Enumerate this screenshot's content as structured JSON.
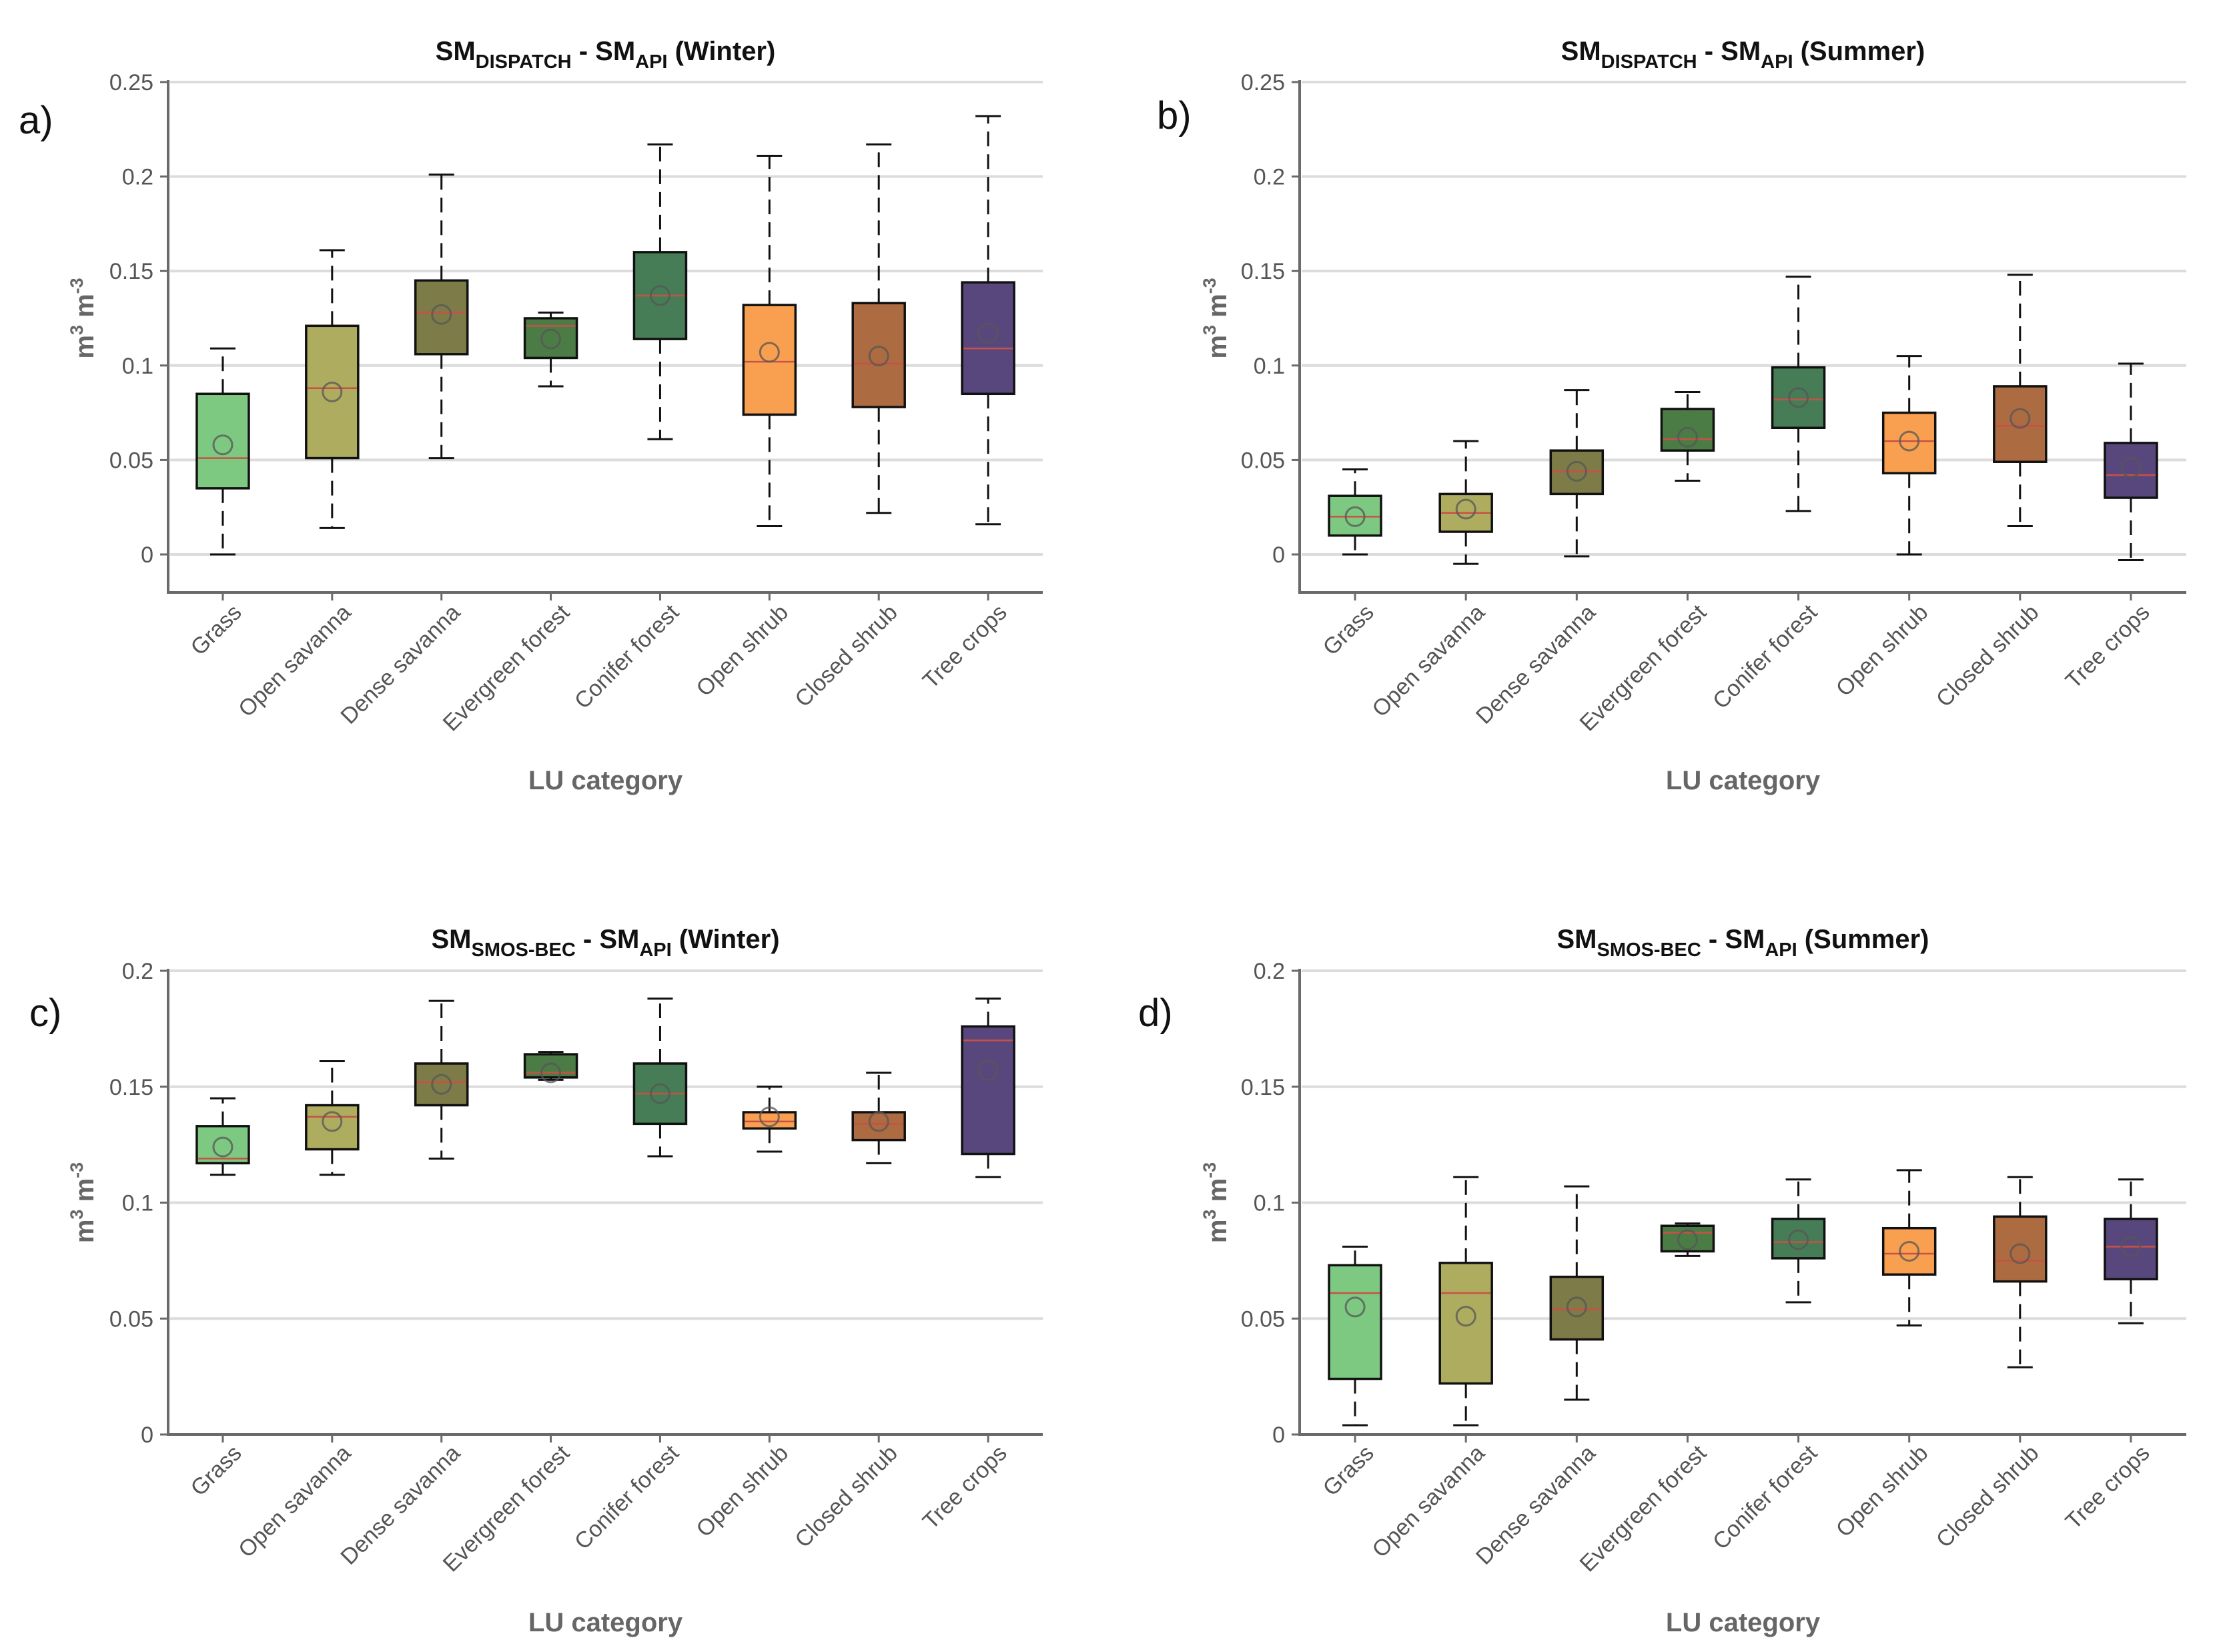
{
  "figure": {
    "colors": {
      "Grass": "#7ec982",
      "Open savanna": "#aeac5f",
      "Dense savanna": "#7d7b48",
      "Evergreen forest": "#4c7c46",
      "Conifer forest": "#477d56",
      "Open shrub": "#f8a050",
      "Closed shrub": "#ac6b40",
      "Tree crops": "#58477d",
      "median_line": "#c95046",
      "mean_marker": "#555555",
      "grid": "#dcdcdc",
      "axis": "#6a6a6a"
    }
  },
  "chart_data": [
    {
      "panel": "a)",
      "type": "box",
      "title": {
        "main1": "SM",
        "sub1": "DISPATCH",
        "mid": " - SM",
        "sub2": "API",
        "tail": " (Winter)"
      },
      "xlabel": "LU category",
      "ylabel": {
        "unit1": "m",
        "exp1": "3",
        "unit2": " m",
        "exp2": "-3"
      },
      "ylim": [
        -0.02,
        0.25
      ],
      "yticks": [
        0,
        0.05,
        0.1,
        0.15,
        0.2,
        0.25
      ],
      "ytick_labels": [
        "0",
        "0.05",
        "0.1",
        "0.15",
        "0.2",
        "0.25"
      ],
      "categories": [
        "Grass",
        "Open savanna",
        "Dense savanna",
        "Evergreen forest",
        "Conifer forest",
        "Open shrub",
        "Closed shrub",
        "Tree crops"
      ],
      "boxes": [
        {
          "whislo": 0.0,
          "q1": 0.035,
          "med": 0.051,
          "q3": 0.085,
          "whishi": 0.109,
          "mean": 0.058
        },
        {
          "whislo": 0.014,
          "q1": 0.051,
          "med": 0.088,
          "q3": 0.121,
          "whishi": 0.161,
          "mean": 0.086
        },
        {
          "whislo": 0.051,
          "q1": 0.106,
          "med": 0.128,
          "q3": 0.145,
          "whishi": 0.201,
          "mean": 0.127
        },
        {
          "whislo": 0.089,
          "q1": 0.104,
          "med": 0.121,
          "q3": 0.125,
          "whishi": 0.128,
          "mean": 0.114
        },
        {
          "whislo": 0.061,
          "q1": 0.114,
          "med": 0.137,
          "q3": 0.16,
          "whishi": 0.217,
          "mean": 0.137
        },
        {
          "whislo": 0.015,
          "q1": 0.074,
          "med": 0.102,
          "q3": 0.132,
          "whishi": 0.211,
          "mean": 0.107
        },
        {
          "whislo": 0.022,
          "q1": 0.078,
          "med": 0.101,
          "q3": 0.133,
          "whishi": 0.217,
          "mean": 0.105
        },
        {
          "whislo": 0.016,
          "q1": 0.085,
          "med": 0.109,
          "q3": 0.144,
          "whishi": 0.232,
          "mean": 0.117
        }
      ]
    },
    {
      "panel": "b)",
      "type": "box",
      "title": {
        "main1": "SM",
        "sub1": "DISPATCH",
        "mid": " - SM",
        "sub2": "API",
        "tail": " (Summer)"
      },
      "xlabel": "LU category",
      "ylabel": {
        "unit1": "m",
        "exp1": "3",
        "unit2": " m",
        "exp2": "-3"
      },
      "ylim": [
        -0.02,
        0.25
      ],
      "yticks": [
        0,
        0.05,
        0.1,
        0.15,
        0.2,
        0.25
      ],
      "ytick_labels": [
        "0",
        "0.05",
        "0.1",
        "0.15",
        "0.2",
        "0.25"
      ],
      "categories": [
        "Grass",
        "Open savanna",
        "Dense savanna",
        "Evergreen forest",
        "Conifer forest",
        "Open shrub",
        "Closed shrub",
        "Tree crops"
      ],
      "boxes": [
        {
          "whislo": 0.0,
          "q1": 0.01,
          "med": 0.02,
          "q3": 0.031,
          "whishi": 0.045,
          "mean": 0.02
        },
        {
          "whislo": -0.005,
          "q1": 0.012,
          "med": 0.022,
          "q3": 0.032,
          "whishi": 0.06,
          "mean": 0.024
        },
        {
          "whislo": -0.001,
          "q1": 0.032,
          "med": 0.044,
          "q3": 0.055,
          "whishi": 0.087,
          "mean": 0.044
        },
        {
          "whislo": 0.039,
          "q1": 0.055,
          "med": 0.061,
          "q3": 0.077,
          "whishi": 0.086,
          "mean": 0.062
        },
        {
          "whislo": 0.023,
          "q1": 0.067,
          "med": 0.082,
          "q3": 0.099,
          "whishi": 0.147,
          "mean": 0.083
        },
        {
          "whislo": 0.0,
          "q1": 0.043,
          "med": 0.06,
          "q3": 0.075,
          "whishi": 0.105,
          "mean": 0.06
        },
        {
          "whislo": 0.015,
          "q1": 0.049,
          "med": 0.068,
          "q3": 0.089,
          "whishi": 0.148,
          "mean": 0.072
        },
        {
          "whislo": -0.003,
          "q1": 0.03,
          "med": 0.042,
          "q3": 0.059,
          "whishi": 0.101,
          "mean": 0.046
        }
      ]
    },
    {
      "panel": "c)",
      "type": "box",
      "title": {
        "main1": "SM",
        "sub1": "SMOS-BEC",
        "mid": " - SM",
        "sub2": "API",
        "tail": " (Winter)"
      },
      "xlabel": "LU category",
      "ylabel": {
        "unit1": "m",
        "exp1": "3",
        "unit2": " m",
        "exp2": "-3"
      },
      "ylim": [
        0,
        0.2
      ],
      "yticks": [
        0,
        0.05,
        0.1,
        0.15,
        0.2
      ],
      "ytick_labels": [
        "0",
        "0.05",
        "0.1",
        "0.15",
        "0.2"
      ],
      "categories": [
        "Grass",
        "Open savanna",
        "Dense savanna",
        "Evergreen forest",
        "Conifer forest",
        "Open shrub",
        "Closed shrub",
        "Tree crops"
      ],
      "boxes": [
        {
          "whislo": 0.112,
          "q1": 0.117,
          "med": 0.119,
          "q3": 0.133,
          "whishi": 0.145,
          "mean": 0.124
        },
        {
          "whislo": 0.112,
          "q1": 0.123,
          "med": 0.137,
          "q3": 0.142,
          "whishi": 0.161,
          "mean": 0.135
        },
        {
          "whislo": 0.119,
          "q1": 0.142,
          "med": 0.152,
          "q3": 0.16,
          "whishi": 0.187,
          "mean": 0.151
        },
        {
          "whislo": 0.153,
          "q1": 0.154,
          "med": 0.156,
          "q3": 0.164,
          "whishi": 0.165,
          "mean": 0.156
        },
        {
          "whislo": 0.12,
          "q1": 0.134,
          "med": 0.147,
          "q3": 0.16,
          "whishi": 0.188,
          "mean": 0.147
        },
        {
          "whislo": 0.122,
          "q1": 0.132,
          "med": 0.135,
          "q3": 0.139,
          "whishi": 0.15,
          "mean": 0.137
        },
        {
          "whislo": 0.117,
          "q1": 0.127,
          "med": 0.134,
          "q3": 0.139,
          "whishi": 0.156,
          "mean": 0.135
        },
        {
          "whislo": 0.111,
          "q1": 0.121,
          "med": 0.17,
          "q3": 0.176,
          "whishi": 0.188,
          "mean": 0.157
        }
      ]
    },
    {
      "panel": "d)",
      "type": "box",
      "title": {
        "main1": "SM",
        "sub1": "SMOS-BEC",
        "mid": " - SM",
        "sub2": "API",
        "tail": " (Summer)"
      },
      "xlabel": "LU category",
      "ylabel": {
        "unit1": "m",
        "exp1": "3",
        "unit2": " m",
        "exp2": "-3"
      },
      "ylim": [
        0,
        0.2
      ],
      "yticks": [
        0,
        0.05,
        0.1,
        0.15,
        0.2
      ],
      "ytick_labels": [
        "0",
        "0.05",
        "0.1",
        "0.15",
        "0.2"
      ],
      "categories": [
        "Grass",
        "Open savanna",
        "Dense savanna",
        "Evergreen forest",
        "Conifer forest",
        "Open shrub",
        "Closed shrub",
        "Tree crops"
      ],
      "boxes": [
        {
          "whislo": 0.004,
          "q1": 0.024,
          "med": 0.061,
          "q3": 0.073,
          "whishi": 0.081,
          "mean": 0.055
        },
        {
          "whislo": 0.004,
          "q1": 0.022,
          "med": 0.061,
          "q3": 0.074,
          "whishi": 0.111,
          "mean": 0.051
        },
        {
          "whislo": 0.015,
          "q1": 0.041,
          "med": 0.054,
          "q3": 0.068,
          "whishi": 0.107,
          "mean": 0.055
        },
        {
          "whislo": 0.077,
          "q1": 0.079,
          "med": 0.087,
          "q3": 0.09,
          "whishi": 0.091,
          "mean": 0.084
        },
        {
          "whislo": 0.057,
          "q1": 0.076,
          "med": 0.083,
          "q3": 0.093,
          "whishi": 0.11,
          "mean": 0.084
        },
        {
          "whislo": 0.047,
          "q1": 0.069,
          "med": 0.078,
          "q3": 0.089,
          "whishi": 0.114,
          "mean": 0.079
        },
        {
          "whislo": 0.029,
          "q1": 0.066,
          "med": 0.075,
          "q3": 0.094,
          "whishi": 0.111,
          "mean": 0.078
        },
        {
          "whislo": 0.048,
          "q1": 0.067,
          "med": 0.081,
          "q3": 0.093,
          "whishi": 0.11,
          "mean": 0.081
        }
      ]
    }
  ]
}
